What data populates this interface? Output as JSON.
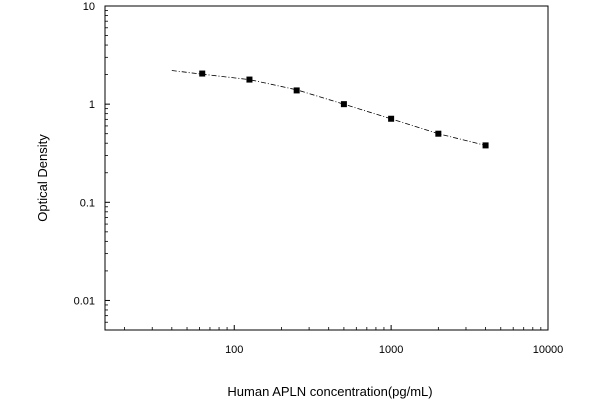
{
  "chart_data": {
    "type": "scatter",
    "title": "",
    "xlabel": "Human APLN concentration(pg/mL)",
    "ylabel": "Optical Density",
    "x_scale": "log",
    "y_scale": "log",
    "xlim": [
      15,
      10000
    ],
    "ylim": [
      0.005,
      10
    ],
    "x_ticks": [
      100,
      1000,
      10000
    ],
    "x_tick_labels": [
      "100",
      "1000",
      "10000"
    ],
    "y_ticks": [
      10,
      1,
      0.1,
      0.01
    ],
    "y_tick_labels": [
      "10",
      "1",
      "0.1",
      "0.01"
    ],
    "grid": false,
    "series": [
      {
        "x": [
          62.5,
          125,
          250,
          500,
          1000,
          2000,
          4000
        ],
        "y": [
          2.05,
          1.78,
          1.38,
          1.0,
          0.71,
          0.5,
          0.38
        ]
      }
    ],
    "fit_curve": {
      "style": "dash-dot",
      "x": [
        40,
        62.5,
        125,
        250,
        500,
        1000,
        2000,
        4000
      ],
      "y": [
        2.2,
        2.02,
        1.78,
        1.4,
        1.0,
        0.71,
        0.5,
        0.38
      ]
    }
  }
}
